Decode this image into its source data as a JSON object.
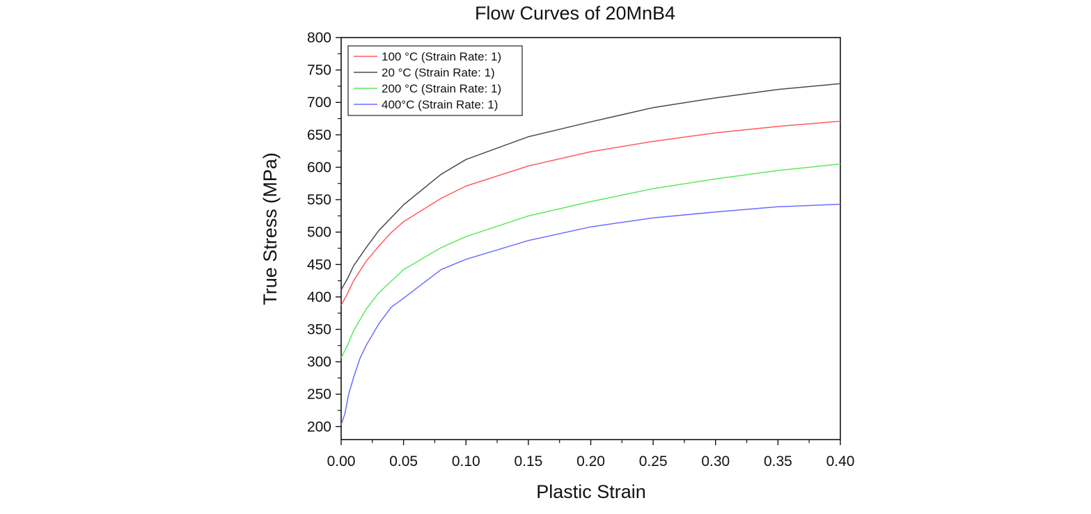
{
  "chart_data": {
    "type": "line",
    "title": "Flow Curves of 20MnB4",
    "xlabel": "Plastic Strain",
    "ylabel": "True Stress (MPa)",
    "xlim": [
      0.0,
      0.4
    ],
    "ylim": [
      180,
      800
    ],
    "x_ticks": [
      0.0,
      0.05,
      0.1,
      0.15,
      0.2,
      0.25,
      0.3,
      0.35,
      0.4
    ],
    "x_tick_labels": [
      "0.00",
      "0.05",
      "0.10",
      "0.15",
      "0.20",
      "0.25",
      "0.30",
      "0.35",
      "0.40"
    ],
    "y_ticks": [
      200,
      250,
      300,
      350,
      400,
      450,
      500,
      550,
      600,
      650,
      700,
      750,
      800
    ],
    "y_tick_labels": [
      "200",
      "250",
      "300",
      "350",
      "400",
      "450",
      "500",
      "550",
      "600",
      "650",
      "700",
      "750",
      "800"
    ],
    "grid": false,
    "legend_position": "top-left",
    "series": [
      {
        "name": "100 °C (Strain Rate: 1)",
        "color": "#ff5a5a",
        "x": [
          0,
          0.005,
          0.01,
          0.02,
          0.03,
          0.04,
          0.05,
          0.08,
          0.1,
          0.15,
          0.2,
          0.25,
          0.3,
          0.35,
          0.4
        ],
        "values": [
          387,
          405,
          425,
          455,
          478,
          499,
          516,
          552,
          571,
          602,
          624,
          640,
          653,
          663,
          671
        ]
      },
      {
        "name": "20 °C (Strain Rate: 1)",
        "color": "#4a4a4a",
        "x": [
          0,
          0.005,
          0.01,
          0.02,
          0.03,
          0.04,
          0.05,
          0.08,
          0.1,
          0.15,
          0.2,
          0.25,
          0.3,
          0.35,
          0.4
        ],
        "values": [
          411,
          428,
          448,
          476,
          502,
          522,
          542,
          589,
          612,
          647,
          670,
          692,
          707,
          720,
          729
        ]
      },
      {
        "name": "200 °C (Strain Rate: 1)",
        "color": "#5de85d",
        "x": [
          0,
          0.005,
          0.01,
          0.02,
          0.03,
          0.04,
          0.05,
          0.08,
          0.1,
          0.15,
          0.2,
          0.25,
          0.3,
          0.35,
          0.4
        ],
        "values": [
          306,
          325,
          348,
          381,
          406,
          424,
          442,
          476,
          493,
          525,
          547,
          567,
          582,
          595,
          605
        ]
      },
      {
        "name": "400°C (Strain Rate: 1)",
        "color": "#6b6bff",
        "x": [
          0,
          0.003,
          0.006,
          0.01,
          0.015,
          0.02,
          0.03,
          0.04,
          0.05,
          0.08,
          0.1,
          0.15,
          0.2,
          0.25,
          0.3,
          0.35,
          0.4
        ],
        "values": [
          203,
          220,
          250,
          276,
          305,
          325,
          358,
          384,
          398,
          442,
          458,
          487,
          508,
          522,
          531,
          539,
          543
        ]
      }
    ]
  }
}
